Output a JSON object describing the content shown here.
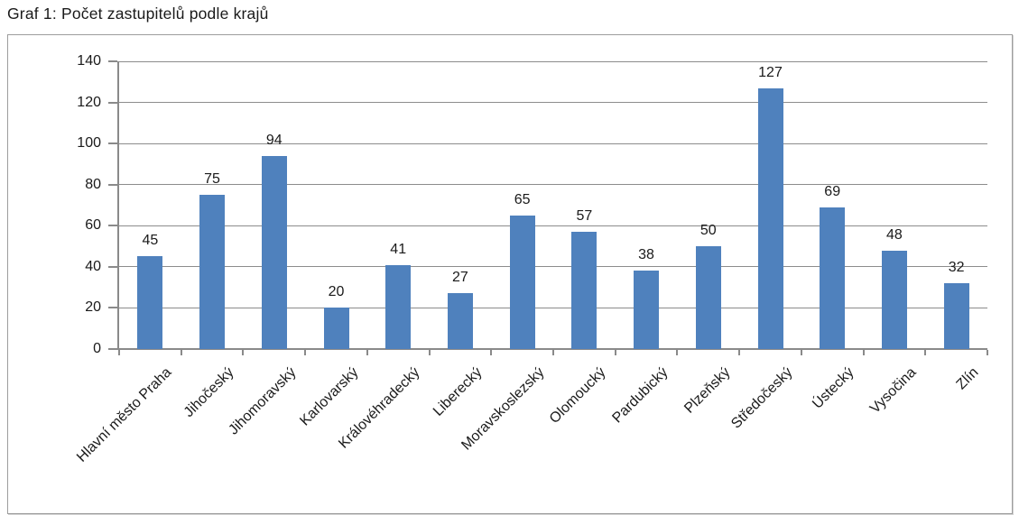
{
  "chart_data": {
    "type": "bar",
    "title": "Graf 1: Počet zastupitelů podle krajů",
    "categories": [
      "Hlavní město Praha",
      "Jihočeský",
      "Jihomoravský",
      "Karlovarský",
      "Královéhradecký",
      "Liberecký",
      "Moravskoslezský",
      "Olomoucký",
      "Pardubický",
      "Plzeňský",
      "Středočeský",
      "Ústecký",
      "Vysočina",
      "Zlín"
    ],
    "values": [
      45,
      75,
      94,
      20,
      41,
      27,
      65,
      57,
      38,
      50,
      127,
      69,
      48,
      32
    ],
    "xlabel": "",
    "ylabel": "",
    "ylim": [
      0,
      140
    ],
    "yticks": [
      0,
      20,
      40,
      60,
      80,
      100,
      120,
      140
    ],
    "grid": true,
    "legend": "none",
    "data_labels": true,
    "x_label_rotation_deg": 45,
    "bar_color": "#4f81bd",
    "axis_color": "#8a8a8a",
    "grid_color": "#8c8c8c",
    "frame_color": "#9d9d9d",
    "label_color": "#1a1a1a"
  }
}
